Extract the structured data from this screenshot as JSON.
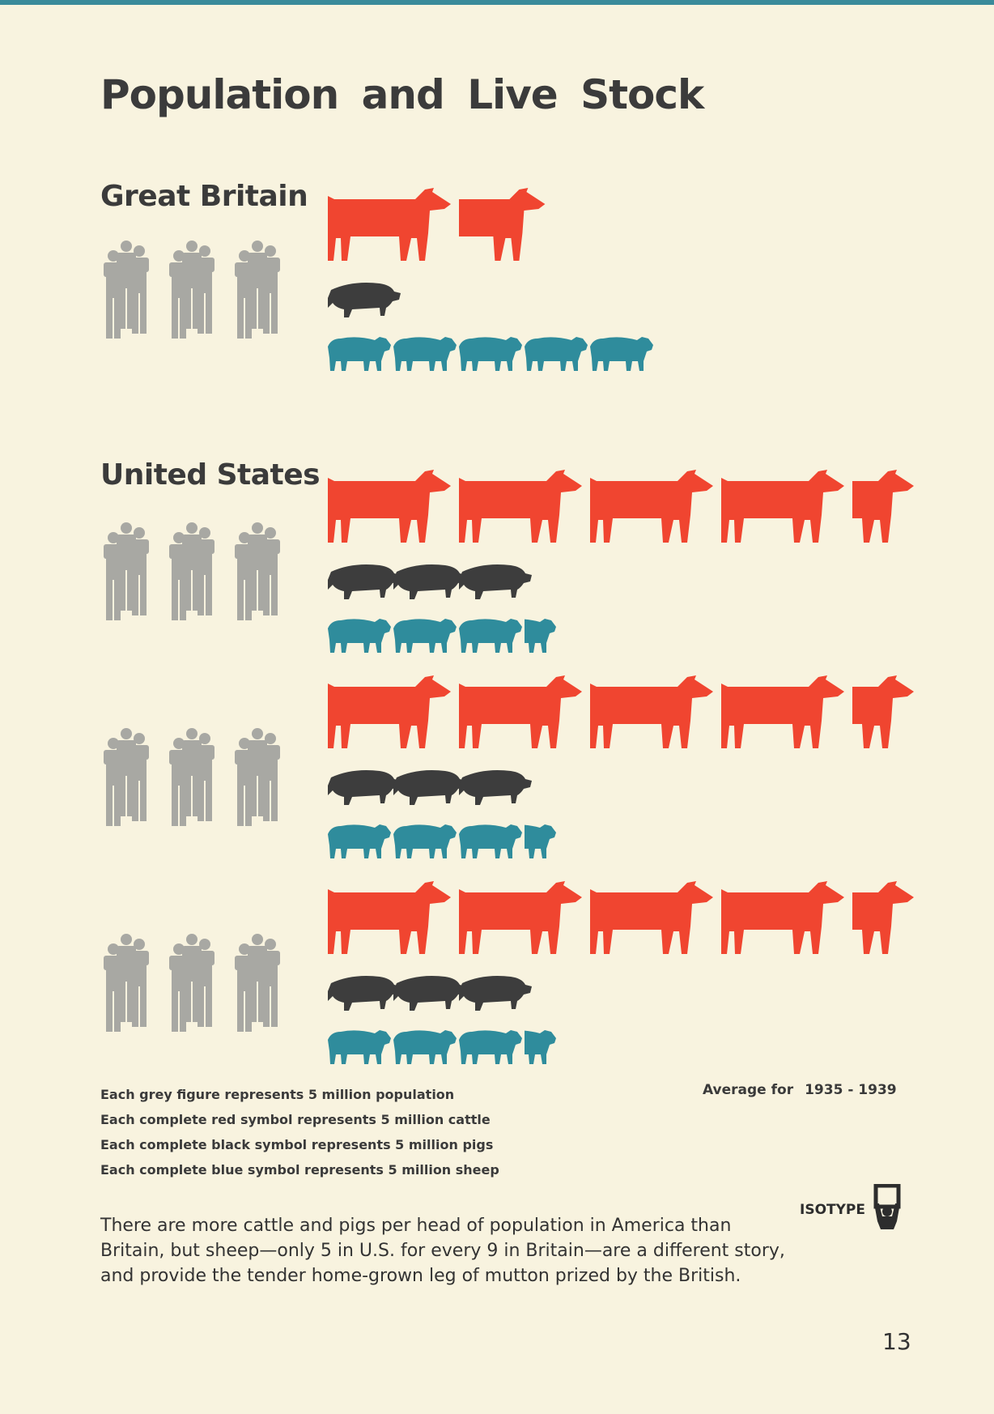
{
  "page_title": "Population and Live Stock",
  "colors": {
    "population": "#a8a8a3",
    "cattle": "#f04530",
    "pigs": "#3d3d3d",
    "sheep": "#2f8c9c",
    "paper": "#f8f3df"
  },
  "chart_data": {
    "type": "table",
    "title": "Population and Live Stock",
    "unit": "million",
    "columns": [
      "population",
      "cattle",
      "pigs",
      "sheep"
    ],
    "groups": [
      {
        "label": "Great Britain",
        "rows": [
          {
            "population": 45,
            "cattle": 8.5,
            "pigs": 5,
            "sheep": 25
          }
        ]
      },
      {
        "label": "United States",
        "rows": [
          {
            "population": 45,
            "cattle": 22.5,
            "pigs": 15,
            "sheep": 17.5
          },
          {
            "population": 45,
            "cattle": 22.5,
            "pigs": 15,
            "sheep": 17.5
          },
          {
            "population": 45,
            "cattle": 22.5,
            "pigs": 15,
            "sheep": 17.5
          }
        ]
      }
    ],
    "period": "1935 - 1939"
  },
  "legend": [
    "Each grey figure represents 5 million population",
    "Each complete red symbol represents 5 million cattle",
    "Each complete black symbol represents 5 million pigs",
    "Each complete blue symbol represents 5 million sheep"
  ],
  "average": {
    "label": "Average for",
    "years": "1935 - 1939"
  },
  "isotype_label": "ISOTYPE",
  "caption": "There are more cattle and pigs per head of population in America than Britain, but sheep—only 5 in U.S. for every 9 in Britain—are a different story, and provide the tender home-grown leg of mutton prized by the British.",
  "page_number": "13"
}
